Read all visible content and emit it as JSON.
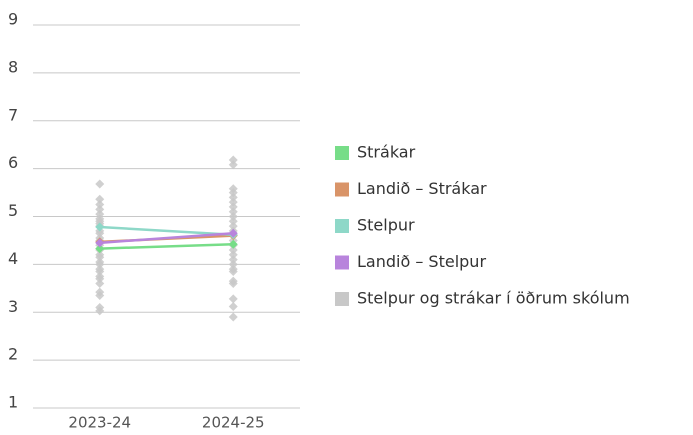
{
  "chart_data": {
    "type": "line",
    "categories": [
      "2023-24",
      "2024-25"
    ],
    "ylim": [
      1,
      9
    ],
    "yticks": [
      1,
      2,
      3,
      4,
      5,
      6,
      7,
      8,
      9
    ],
    "grid": true,
    "legend": "right",
    "series": [
      {
        "name": "Strákar",
        "color": "#77dd88",
        "values": [
          4.33,
          4.42
        ]
      },
      {
        "name": "Landið – Strákar",
        "color": "#d99468",
        "values": [
          4.47,
          4.6
        ]
      },
      {
        "name": "Stelpur",
        "color": "#8ed8c8",
        "values": [
          4.78,
          4.62
        ]
      },
      {
        "name": "Landið – Stelpur",
        "color": "#b884dc",
        "values": [
          4.45,
          4.65
        ]
      },
      {
        "name": "Stelpur og strákar í öðrum skólum",
        "color": "#c8c8c8",
        "values": [
          [
            3.03,
            3.1,
            3.35,
            3.42,
            3.6,
            3.7,
            3.75,
            3.85,
            3.9,
            4.0,
            4.05,
            4.15,
            4.2,
            4.3,
            4.4,
            4.5,
            4.55,
            4.65,
            4.7,
            4.8,
            4.85,
            4.9,
            4.95,
            5.05,
            5.15,
            5.25,
            5.36,
            5.68
          ],
          [
            2.9,
            3.12,
            3.28,
            3.6,
            3.65,
            3.85,
            3.9,
            4.0,
            4.1,
            4.2,
            4.3,
            4.4,
            4.5,
            4.6,
            4.7,
            4.8,
            4.9,
            5.0,
            5.1,
            5.2,
            5.3,
            5.4,
            5.5,
            5.58,
            6.08,
            6.18
          ]
        ]
      }
    ]
  }
}
